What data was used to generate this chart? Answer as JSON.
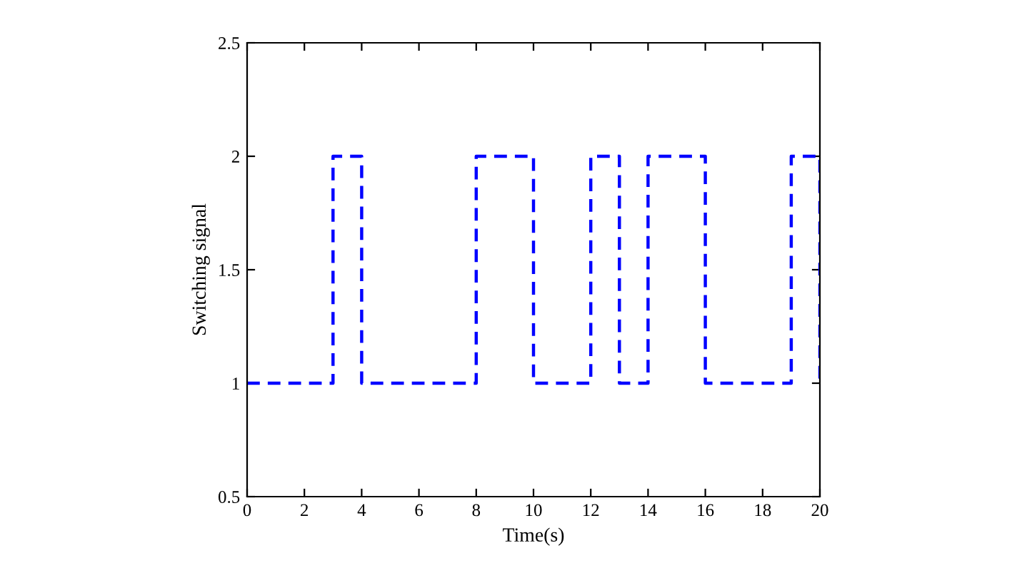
{
  "chart_data": {
    "type": "step",
    "xlabel": "Time(s)",
    "ylabel": "Switching signal",
    "x": [
      0,
      3,
      4,
      8,
      10,
      12,
      13,
      14,
      16,
      19,
      20
    ],
    "series": [
      {
        "color": "#0000ff",
        "values": [
          1,
          2,
          1,
          2,
          1,
          2,
          1,
          2,
          1,
          2,
          1
        ]
      }
    ],
    "line_style": "dashed",
    "marker": "none",
    "grid": false,
    "legend": false,
    "xlim": [
      0,
      20
    ],
    "xticks": [
      0,
      2,
      4,
      6,
      8,
      10,
      12,
      14,
      16,
      18,
      20
    ],
    "ylim": [
      0.5,
      2.5
    ],
    "yticks": [
      0.5,
      1,
      1.5,
      2,
      2.5
    ]
  }
}
